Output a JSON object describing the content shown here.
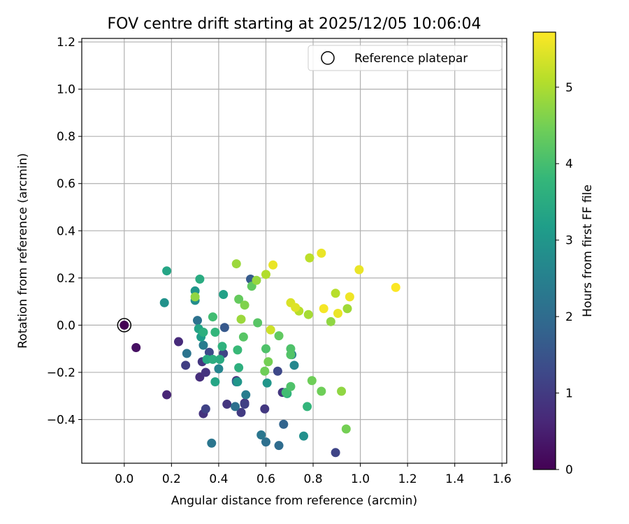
{
  "chart_data": {
    "type": "scatter",
    "title": "FOV centre drift starting at 2025/12/05 10:06:04",
    "xlabel": "Angular distance from reference (arcmin)",
    "ylabel": "Rotation from reference (arcmin)",
    "xlim": [
      -0.18,
      1.62
    ],
    "ylim": [
      -0.585,
      1.215
    ],
    "xticks": [
      0.0,
      0.2,
      0.4,
      0.6,
      0.8,
      1.0,
      1.2,
      1.4,
      1.6
    ],
    "xtick_labels": [
      "0.0",
      "0.2",
      "0.4",
      "0.6",
      "0.8",
      "1.0",
      "1.2",
      "1.4",
      "1.6"
    ],
    "yticks": [
      -0.4,
      -0.2,
      0.0,
      0.2,
      0.4,
      0.6,
      0.8,
      1.0,
      1.2
    ],
    "ytick_labels": [
      "−0.4",
      "−0.2",
      "0.0",
      "0.2",
      "0.4",
      "0.6",
      "0.8",
      "1.0",
      "1.2"
    ],
    "grid": true,
    "legend": {
      "position": "top-right",
      "entries": [
        {
          "label": "Reference platepar",
          "marker": "open-circle"
        }
      ]
    },
    "colorbar": {
      "label": "Hours from first FF file",
      "colormap": "viridis",
      "range": [
        0,
        5.72
      ],
      "ticks": [
        0,
        1,
        2,
        3,
        4,
        5
      ],
      "tick_labels": [
        "0",
        "1",
        "2",
        "3",
        "4",
        "5"
      ]
    },
    "reference_point": {
      "x": 0.0,
      "y": 0.0
    },
    "points": [
      {
        "x": 0.0,
        "y": 0.0,
        "t": 0.0
      },
      {
        "x": 0.05,
        "y": -0.095,
        "t": 0.25
      },
      {
        "x": 0.18,
        "y": -0.295,
        "t": 0.6
      },
      {
        "x": 0.23,
        "y": -0.07,
        "t": 0.7
      },
      {
        "x": 0.26,
        "y": -0.17,
        "t": 1.05
      },
      {
        "x": 0.32,
        "y": -0.22,
        "t": 0.75
      },
      {
        "x": 0.33,
        "y": -0.155,
        "t": 0.9
      },
      {
        "x": 0.335,
        "y": -0.375,
        "t": 0.85
      },
      {
        "x": 0.345,
        "y": -0.355,
        "t": 1.15
      },
      {
        "x": 0.345,
        "y": -0.2,
        "t": 0.85
      },
      {
        "x": 0.36,
        "y": -0.115,
        "t": 1.3
      },
      {
        "x": 0.42,
        "y": -0.12,
        "t": 1.2
      },
      {
        "x": 0.435,
        "y": -0.335,
        "t": 0.9
      },
      {
        "x": 0.475,
        "y": -0.235,
        "t": 0.7
      },
      {
        "x": 0.495,
        "y": -0.37,
        "t": 1.0
      },
      {
        "x": 0.51,
        "y": -0.33,
        "t": 0.8
      },
      {
        "x": 0.51,
        "y": -0.335,
        "t": 1.1
      },
      {
        "x": 0.535,
        "y": 0.195,
        "t": 1.65
      },
      {
        "x": 0.595,
        "y": -0.355,
        "t": 0.95
      },
      {
        "x": 0.65,
        "y": -0.195,
        "t": 1.25
      },
      {
        "x": 0.67,
        "y": -0.285,
        "t": 0.9
      },
      {
        "x": 0.895,
        "y": -0.54,
        "t": 1.2
      },
      {
        "x": 0.675,
        "y": -0.42,
        "t": 1.85
      },
      {
        "x": 0.655,
        "y": -0.51,
        "t": 2.0
      },
      {
        "x": 0.6,
        "y": -0.495,
        "t": 2.1
      },
      {
        "x": 0.58,
        "y": -0.465,
        "t": 2.25
      },
      {
        "x": 0.37,
        "y": -0.5,
        "t": 2.25
      },
      {
        "x": 0.425,
        "y": -0.01,
        "t": 1.6
      },
      {
        "x": 0.47,
        "y": -0.345,
        "t": 2.1
      },
      {
        "x": 0.475,
        "y": -0.24,
        "t": 2.0
      },
      {
        "x": 0.265,
        "y": -0.12,
        "t": 2.2
      },
      {
        "x": 0.31,
        "y": 0.02,
        "t": 2.15
      },
      {
        "x": 0.515,
        "y": -0.295,
        "t": 2.4
      },
      {
        "x": 0.48,
        "y": -0.24,
        "t": 3.0
      },
      {
        "x": 0.4,
        "y": -0.185,
        "t": 2.6
      },
      {
        "x": 0.335,
        "y": -0.085,
        "t": 2.4
      },
      {
        "x": 0.3,
        "y": 0.105,
        "t": 2.8
      },
      {
        "x": 0.71,
        "y": -0.125,
        "t": 2.5
      },
      {
        "x": 0.72,
        "y": -0.17,
        "t": 2.65
      },
      {
        "x": 0.605,
        "y": -0.245,
        "t": 3.0
      },
      {
        "x": 0.76,
        "y": -0.47,
        "t": 2.85
      },
      {
        "x": 0.325,
        "y": -0.05,
        "t": 3.15
      },
      {
        "x": 0.17,
        "y": 0.095,
        "t": 2.9
      },
      {
        "x": 0.18,
        "y": 0.23,
        "t": 3.35
      },
      {
        "x": 0.3,
        "y": 0.145,
        "t": 3.0
      },
      {
        "x": 0.32,
        "y": 0.195,
        "t": 3.5
      },
      {
        "x": 0.42,
        "y": 0.13,
        "t": 3.25
      },
      {
        "x": 0.315,
        "y": -0.015,
        "t": 3.3
      },
      {
        "x": 0.335,
        "y": -0.03,
        "t": 3.6
      },
      {
        "x": 0.35,
        "y": -0.145,
        "t": 3.45
      },
      {
        "x": 0.375,
        "y": -0.145,
        "t": 3.55
      },
      {
        "x": 0.385,
        "y": -0.24,
        "t": 3.35
      },
      {
        "x": 0.405,
        "y": -0.145,
        "t": 3.5
      },
      {
        "x": 0.385,
        "y": -0.03,
        "t": 3.75
      },
      {
        "x": 0.415,
        "y": -0.09,
        "t": 3.65
      },
      {
        "x": 0.485,
        "y": -0.18,
        "t": 3.6
      },
      {
        "x": 0.48,
        "y": -0.105,
        "t": 3.85
      },
      {
        "x": 0.375,
        "y": 0.035,
        "t": 3.95
      },
      {
        "x": 0.69,
        "y": -0.29,
        "t": 3.7
      },
      {
        "x": 0.775,
        "y": -0.345,
        "t": 3.75
      },
      {
        "x": 0.685,
        "y": -0.285,
        "t": 3.95
      },
      {
        "x": 0.705,
        "y": -0.26,
        "t": 4.1
      },
      {
        "x": 0.6,
        "y": -0.1,
        "t": 4.1
      },
      {
        "x": 0.705,
        "y": -0.1,
        "t": 4.1
      },
      {
        "x": 0.705,
        "y": -0.125,
        "t": 4.15
      },
      {
        "x": 0.505,
        "y": -0.05,
        "t": 4.2
      },
      {
        "x": 0.565,
        "y": 0.01,
        "t": 4.2
      },
      {
        "x": 0.655,
        "y": -0.045,
        "t": 4.3
      },
      {
        "x": 0.61,
        "y": -0.155,
        "t": 4.5
      },
      {
        "x": 0.595,
        "y": -0.195,
        "t": 4.45
      },
      {
        "x": 0.795,
        "y": -0.235,
        "t": 4.45
      },
      {
        "x": 0.835,
        "y": -0.28,
        "t": 4.45
      },
      {
        "x": 0.94,
        "y": -0.44,
        "t": 4.5
      },
      {
        "x": 0.92,
        "y": -0.28,
        "t": 4.75
      },
      {
        "x": 0.485,
        "y": 0.11,
        "t": 4.35
      },
      {
        "x": 0.51,
        "y": 0.085,
        "t": 4.6
      },
      {
        "x": 0.54,
        "y": 0.165,
        "t": 4.3
      },
      {
        "x": 0.3,
        "y": 0.12,
        "t": 4.75
      },
      {
        "x": 0.495,
        "y": 0.025,
        "t": 4.85
      },
      {
        "x": 0.56,
        "y": 0.19,
        "t": 4.8
      },
      {
        "x": 0.475,
        "y": 0.26,
        "t": 4.85
      },
      {
        "x": 0.6,
        "y": 0.215,
        "t": 5.05
      },
      {
        "x": 0.875,
        "y": 0.015,
        "t": 4.75
      },
      {
        "x": 0.945,
        "y": 0.07,
        "t": 4.9
      },
      {
        "x": 0.78,
        "y": 0.045,
        "t": 4.95
      },
      {
        "x": 0.74,
        "y": 0.06,
        "t": 5.1
      },
      {
        "x": 0.62,
        "y": -0.02,
        "t": 5.3
      },
      {
        "x": 0.785,
        "y": 0.285,
        "t": 5.15
      },
      {
        "x": 0.895,
        "y": 0.135,
        "t": 5.1
      },
      {
        "x": 0.705,
        "y": 0.095,
        "t": 5.4
      },
      {
        "x": 0.725,
        "y": 0.075,
        "t": 5.45
      },
      {
        "x": 0.63,
        "y": 0.255,
        "t": 5.55
      },
      {
        "x": 0.835,
        "y": 0.305,
        "t": 5.55
      },
      {
        "x": 0.845,
        "y": 0.07,
        "t": 5.65
      },
      {
        "x": 0.905,
        "y": 0.05,
        "t": 5.55
      },
      {
        "x": 0.955,
        "y": 0.12,
        "t": 5.6
      },
      {
        "x": 0.995,
        "y": 0.235,
        "t": 5.55
      },
      {
        "x": 1.15,
        "y": 0.16,
        "t": 5.7
      }
    ]
  }
}
